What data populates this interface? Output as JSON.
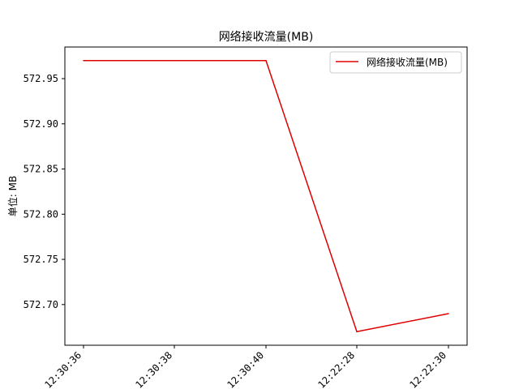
{
  "chart_data": {
    "type": "line",
    "title": "网络接收流量(MB)",
    "xlabel": "",
    "ylabel": "单位: MB",
    "categories": [
      "12:30:36",
      "12:30:38",
      "12:30:40",
      "12:22:28",
      "12:22:30"
    ],
    "series": [
      {
        "name": "网络接收流量(MB)",
        "color": "#e00000",
        "values": [
          572.97,
          572.97,
          572.97,
          572.67,
          572.69
        ]
      }
    ],
    "ylim": [
      572.655,
      572.985
    ],
    "yticks": [
      "572.70",
      "572.75",
      "572.80",
      "572.85",
      "572.90",
      "572.95"
    ],
    "grid": false,
    "legend": "top-right"
  }
}
